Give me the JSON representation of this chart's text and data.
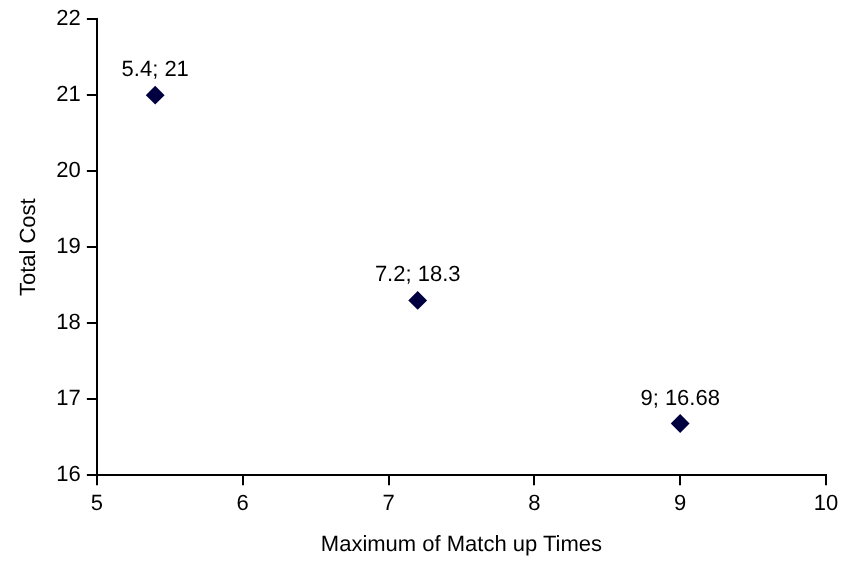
{
  "chart_data": {
    "type": "scatter",
    "xlabel": "Maximum of Match up Times",
    "ylabel": "Total Cost",
    "x": [
      5.4,
      7.2,
      9
    ],
    "values": [
      21,
      18.3,
      16.68
    ],
    "color": "#000040",
    "value_labels": [
      "5.4; 21",
      "7.2; 18.3",
      "9; 16.68"
    ],
    "xlim": [
      5,
      10
    ],
    "xticks": [
      5,
      6,
      7,
      8,
      9,
      10
    ],
    "ylim": [
      16,
      22
    ],
    "yticks": [
      16,
      17,
      18,
      19,
      20,
      21,
      22
    ],
    "grid": false,
    "legend": false,
    "marker": "diamond"
  }
}
